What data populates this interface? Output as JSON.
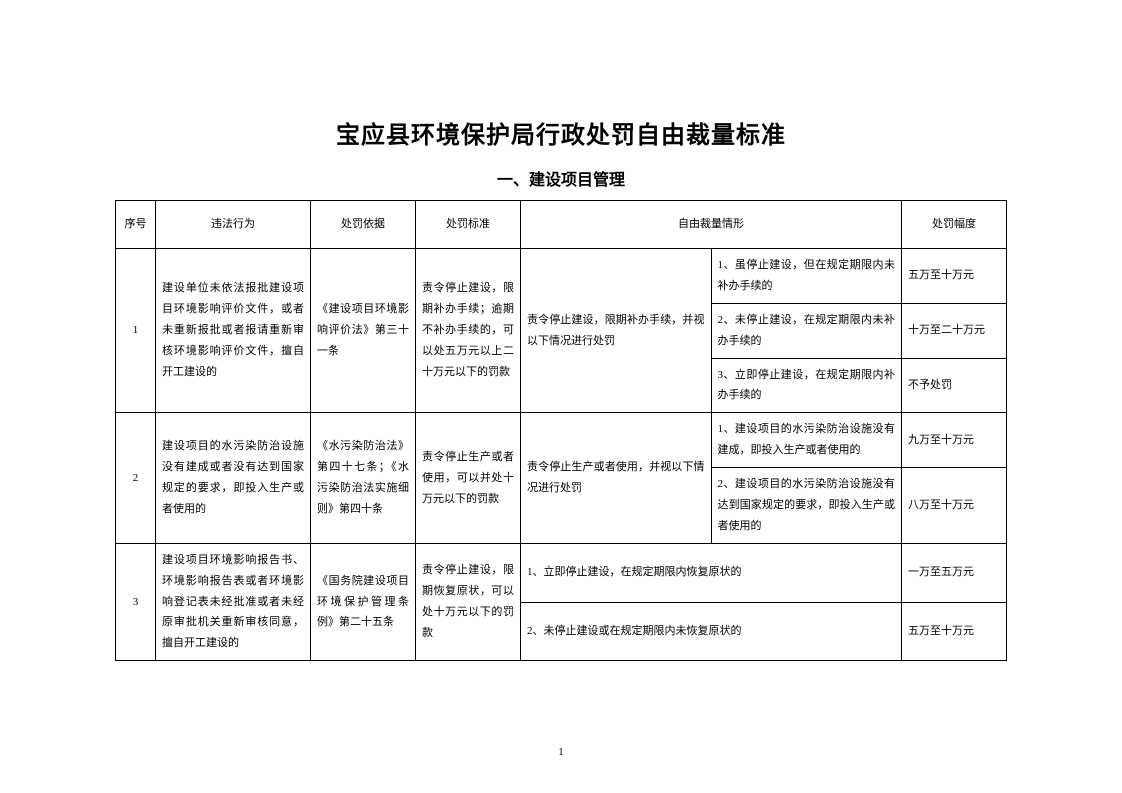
{
  "title_main": "宝应县环境保护局行政处罚自由裁量标准",
  "title_sub": "一、建设项目管理",
  "headers": {
    "no": "序号",
    "illegal": "违法行为",
    "basis": "处罚依据",
    "standard": "处罚标准",
    "discretion": "自由裁量情形",
    "range": "处罚幅度"
  },
  "rows": {
    "r1": {
      "no": "1",
      "illegal": "建设单位未依法报批建设项目环境影响评价文件，或者未重新报批或者报请重新审核环境影响评价文件，擅自开工建设的",
      "basis": "《建设项目环境影响评价法》第三十一条",
      "standard": "责令停止建设，限期补办手续；逾期不补办手续的，可以处五万元以上二十万元以下的罚款",
      "discretion": "责令停止建设，限期补办手续，并视以下情况进行处罚",
      "subs": {
        "s1": {
          "text": "1、虽停止建设，但在规定期限内未补办手续的",
          "range": "五万至十万元"
        },
        "s2": {
          "text": "2、未停止建设，在规定期限内未补办手续的",
          "range": "十万至二十万元"
        },
        "s3": {
          "text": "3、立即停止建设，在规定期限内补办手续的",
          "range": "不予处罚"
        }
      }
    },
    "r2": {
      "no": "2",
      "illegal": "建设项目的水污染防治设施没有建成或者没有达到国家规定的要求，即投入生产或者使用的",
      "basis": "《水污染防治法》第四十七条；《水污染防治法实施细则》第四十条",
      "standard": "责令停止生产或者使用，可以并处十万元以下的罚款",
      "discretion": "责令停止生产或者使用，并视以下情况进行处罚",
      "subs": {
        "s1": {
          "text": "1、建设项目的水污染防治设施没有建成，即投入生产或者使用的",
          "range": "九万至十万元"
        },
        "s2": {
          "text": "2、建设项目的水污染防治设施没有达到国家规定的要求，即投入生产或者使用的",
          "range": "八万至十万元"
        }
      }
    },
    "r3": {
      "no": "3",
      "illegal": "建设项目环境影响报告书、环境影响报告表或者环境影响登记表未经批准或者未经原审批机关重新审核同意，擅自开工建设的",
      "basis": "《国务院建设项目环境保护管理条例》第二十五条",
      "standard": "责令停止建设，限期恢复原状，可以处十万元以下的罚款",
      "subs": {
        "s1": {
          "text": "1、立即停止建设，在规定期限内恢复原状的",
          "range": "一万至五万元"
        },
        "s2": {
          "text": "2、未停止建设或在规定期限内未恢复原状的",
          "range": "五万至十万元"
        }
      }
    }
  },
  "page_number": "1"
}
